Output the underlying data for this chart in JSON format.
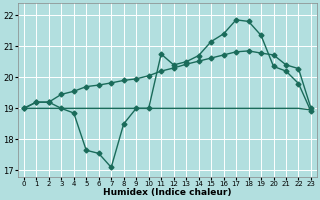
{
  "title": "",
  "xlabel": "Humidex (Indice chaleur)",
  "ylabel": "",
  "bg_color": "#b2dfdf",
  "grid_color": "#ffffff",
  "line_color": "#1a6b5a",
  "line_width": 1.0,
  "marker": "D",
  "marker_size": 2.5,
  "xlim": [
    -0.5,
    23.5
  ],
  "ylim": [
    16.8,
    22.4
  ],
  "yticks": [
    17,
    18,
    19,
    20,
    21,
    22
  ],
  "xticks": [
    0,
    1,
    2,
    3,
    4,
    5,
    6,
    7,
    8,
    9,
    10,
    11,
    12,
    13,
    14,
    15,
    16,
    17,
    18,
    19,
    20,
    21,
    22,
    23
  ],
  "line1_x": [
    0,
    1,
    2,
    3,
    4,
    5,
    6,
    7,
    8,
    9,
    10,
    11,
    12,
    13,
    14,
    15,
    16,
    17,
    18,
    19,
    20,
    21,
    22,
    23
  ],
  "line1_y": [
    19.0,
    19.2,
    19.2,
    19.0,
    18.85,
    17.65,
    17.55,
    17.1,
    18.5,
    19.0,
    19.0,
    20.75,
    20.4,
    20.5,
    20.7,
    21.15,
    21.4,
    21.85,
    21.8,
    21.35,
    20.35,
    20.2,
    19.8,
    18.9
  ],
  "line2_x": [
    0,
    1,
    2,
    3,
    4,
    5,
    6,
    7,
    8,
    9,
    10,
    11,
    12,
    13,
    14,
    15,
    16,
    17,
    18,
    19,
    20,
    21,
    22,
    23
  ],
  "line2_y": [
    19.0,
    19.0,
    19.0,
    19.0,
    19.0,
    19.0,
    19.0,
    19.0,
    19.0,
    19.0,
    19.0,
    19.0,
    19.0,
    19.0,
    19.0,
    19.0,
    19.0,
    19.0,
    19.0,
    19.0,
    19.0,
    19.0,
    19.0,
    18.95
  ],
  "line3_x": [
    0,
    1,
    2,
    3,
    4,
    5,
    6,
    7,
    8,
    9,
    10,
    11,
    12,
    13,
    14,
    15,
    16,
    17,
    18,
    19,
    20,
    21,
    22,
    23
  ],
  "line3_y": [
    19.0,
    19.2,
    19.2,
    19.45,
    19.55,
    19.7,
    19.75,
    19.82,
    19.9,
    19.95,
    20.05,
    20.2,
    20.3,
    20.42,
    20.52,
    20.62,
    20.72,
    20.82,
    20.85,
    20.78,
    20.72,
    20.4,
    20.28,
    19.0
  ]
}
